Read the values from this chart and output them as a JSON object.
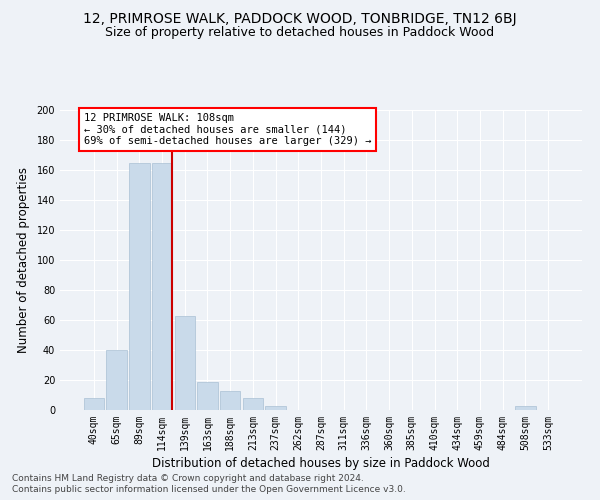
{
  "title": "12, PRIMROSE WALK, PADDOCK WOOD, TONBRIDGE, TN12 6BJ",
  "subtitle": "Size of property relative to detached houses in Paddock Wood",
  "xlabel": "Distribution of detached houses by size in Paddock Wood",
  "ylabel": "Number of detached properties",
  "bar_color": "#c9daea",
  "bar_edge_color": "#aac0d4",
  "categories": [
    "40sqm",
    "65sqm",
    "89sqm",
    "114sqm",
    "139sqm",
    "163sqm",
    "188sqm",
    "213sqm",
    "237sqm",
    "262sqm",
    "287sqm",
    "311sqm",
    "336sqm",
    "360sqm",
    "385sqm",
    "410sqm",
    "434sqm",
    "459sqm",
    "484sqm",
    "508sqm",
    "533sqm"
  ],
  "values": [
    8,
    40,
    165,
    165,
    63,
    19,
    13,
    8,
    3,
    0,
    0,
    0,
    0,
    0,
    0,
    0,
    0,
    0,
    0,
    3,
    0
  ],
  "ylim": [
    0,
    200
  ],
  "yticks": [
    0,
    20,
    40,
    60,
    80,
    100,
    120,
    140,
    160,
    180,
    200
  ],
  "red_line_index": 3,
  "annotation_line1": "12 PRIMROSE WALK: 108sqm",
  "annotation_line2": "← 30% of detached houses are smaller (144)",
  "annotation_line3": "69% of semi-detached houses are larger (329) →",
  "annotation_box_color": "white",
  "annotation_border_color": "red",
  "red_line_color": "#cc0000",
  "footer1": "Contains HM Land Registry data © Crown copyright and database right 2024.",
  "footer2": "Contains public sector information licensed under the Open Government Licence v3.0.",
  "bg_color": "#eef2f7",
  "grid_color": "#ffffff",
  "title_fontsize": 10,
  "subtitle_fontsize": 9,
  "axis_label_fontsize": 8.5,
  "tick_fontsize": 7,
  "annotation_fontsize": 7.5,
  "footer_fontsize": 6.5
}
